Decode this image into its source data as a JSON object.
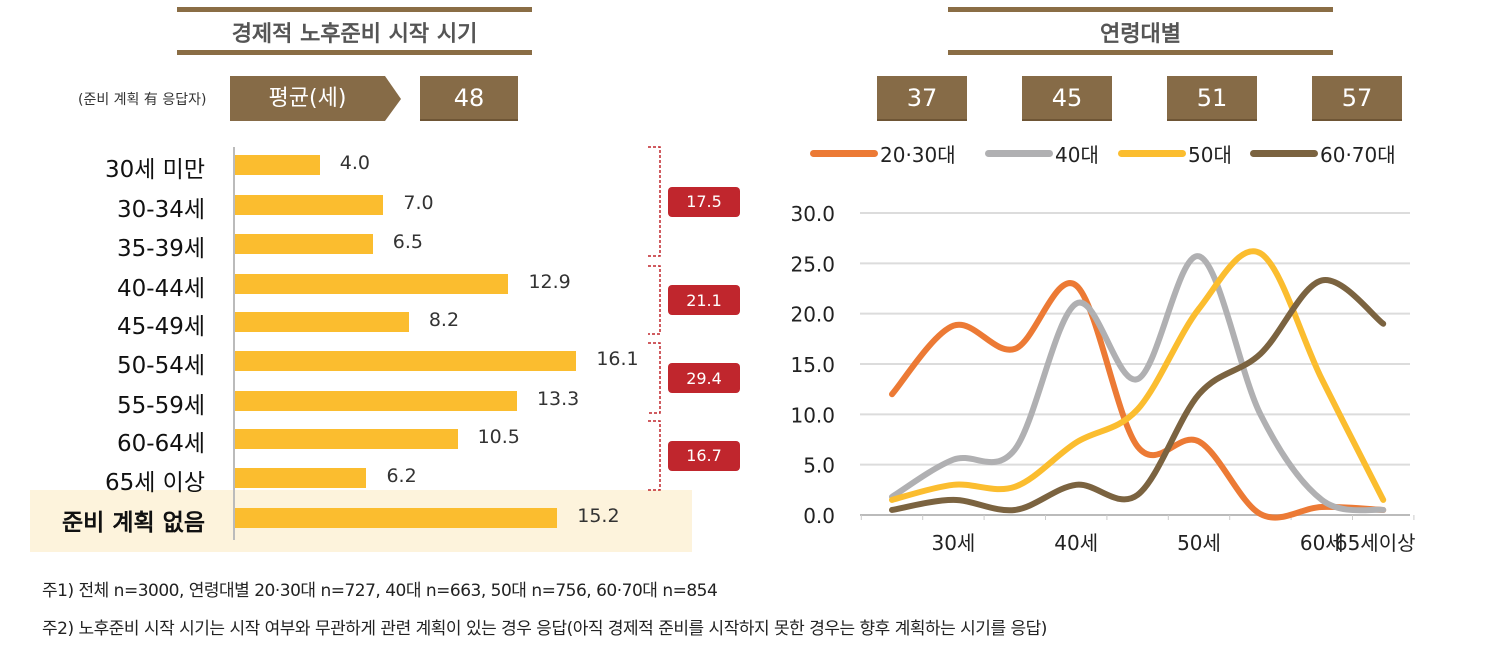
{
  "left": {
    "title": "경제적 노후준비 시작 시기",
    "subnote": "(준비 계획 有 응답자)",
    "avg_label": "평균(세)",
    "avg_value": "48"
  },
  "right": {
    "title": "연령대별",
    "avg_values": [
      "37",
      "45",
      "51",
      "57"
    ]
  },
  "chart_data": [
    {
      "type": "bar",
      "orientation": "horizontal",
      "categories": [
        "30세 미만",
        "30-34세",
        "35-39세",
        "40-44세",
        "45-49세",
        "50-54세",
        "55-59세",
        "60-64세",
        "65세 이상",
        "준비 계획 없음"
      ],
      "values": [
        4.0,
        7.0,
        6.5,
        12.9,
        8.2,
        16.1,
        13.3,
        10.5,
        6.2,
        15.2
      ],
      "value_labels": [
        "4.0",
        "7.0",
        "6.5",
        "12.9",
        "8.2",
        "16.1",
        "13.3",
        "10.5",
        "6.2",
        "15.2"
      ],
      "color": "#fbbd2f",
      "highlight_category": "준비 계획 없음",
      "highlight_color": "#fdf3dc",
      "group_totals": [
        {
          "label": "17.5",
          "rows": [
            0,
            2
          ]
        },
        {
          "label": "21.1",
          "rows": [
            3,
            4
          ]
        },
        {
          "label": "29.4",
          "rows": [
            5,
            6
          ]
        },
        {
          "label": "16.7",
          "rows": [
            7,
            8
          ]
        }
      ],
      "group_color": "#c0262d"
    },
    {
      "type": "line",
      "categories": [
        "30세 미만",
        "30-34세",
        "35-39세",
        "40-44세",
        "45-49세",
        "50-54세",
        "55-59세",
        "60-64세",
        "65세 이상"
      ],
      "tick_labels": [
        {
          "index": 1,
          "label": "30세"
        },
        {
          "index": 3,
          "label": "40세"
        },
        {
          "index": 5,
          "label": "50세"
        },
        {
          "index": 7,
          "label": "60세"
        },
        {
          "index": 8,
          "label": "65세이상"
        }
      ],
      "ylim": [
        0,
        30
      ],
      "yticks": [
        "0.0",
        "5.0",
        "10.0",
        "15.0",
        "20.0",
        "25.0",
        "30.0"
      ],
      "grid": true,
      "smooth": true,
      "legend_position": "top",
      "series": [
        {
          "name": "20·30대",
          "color": "#ec7a35",
          "values": [
            12.0,
            18.8,
            16.5,
            22.8,
            6.8,
            7.3,
            0.1,
            0.8,
            0.5
          ]
        },
        {
          "name": "40대",
          "color": "#b0b0b2",
          "values": [
            1.8,
            5.5,
            6.5,
            21.0,
            13.5,
            25.7,
            10.0,
            1.5,
            0.5
          ]
        },
        {
          "name": "50대",
          "color": "#fbbd2f",
          "values": [
            1.5,
            3.0,
            2.8,
            7.2,
            10.5,
            20.5,
            26.0,
            13.5,
            1.5
          ]
        },
        {
          "name": "60·70대",
          "color": "#7b6340",
          "values": [
            0.5,
            1.5,
            0.5,
            3.0,
            2.0,
            12.0,
            16.0,
            23.3,
            19.0
          ]
        }
      ]
    }
  ],
  "notes": [
    "주1) 전체 n=3000, 연령대별 20·30대 n=727, 40대 n=663, 50대 n=756, 60·70대 n=854",
    "주2) 노후준비 시작 시기는 시작 여부와 무관하게 관련 계획이 있는 경우 응답(아직 경제적 준비를 시작하지 못한 경우는 향후 계획하는 시기를 응답)"
  ]
}
